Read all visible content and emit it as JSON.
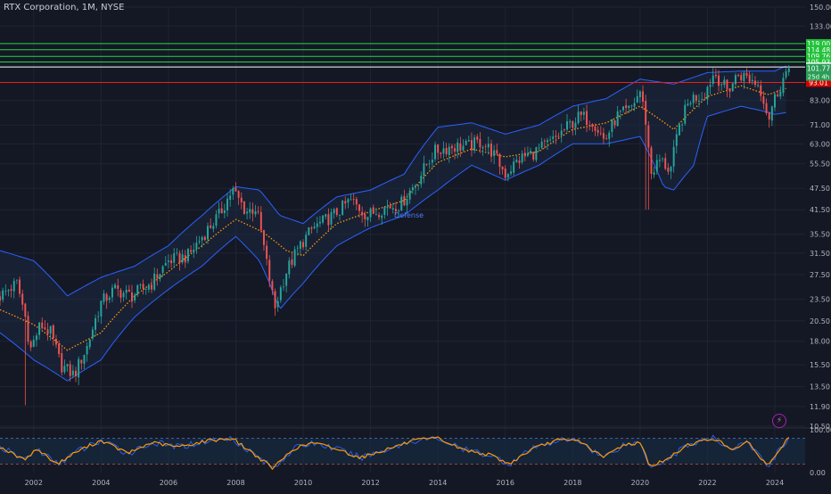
{
  "title": "RTX Corporation, 1M, NYSE",
  "colors": {
    "background": "#141824",
    "grid": "#1f2433",
    "bull": "#26a69a",
    "bear": "#ef5350",
    "band": "#2962ff",
    "band_fill": "#1c2a4a",
    "ma": "#ff9800",
    "resistance": "#26d34a",
    "current": "#ffffff",
    "support": "#ef1b1b",
    "osc": "#ff9800",
    "osc_b": "#2962ff",
    "osc_fill": "#16304a",
    "axis_text": "#b2b5be"
  },
  "annotation": "Defense",
  "alert_icon": "lightning-icon",
  "chart_data": {
    "type": "candlestick",
    "title": "RTX Corporation, 1M, NYSE",
    "log_scale": true,
    "ylim": [
      10.5,
      150
    ],
    "x_range": [
      2001.0,
      2024.9
    ],
    "x_ticks": [
      "2002",
      "2004",
      "2006",
      "2008",
      "2010",
      "2012",
      "2014",
      "2016",
      "2018",
      "2020",
      "2022",
      "2024"
    ],
    "y_ticks": [
      "150.00",
      "133.00",
      "119.00",
      "105.93",
      "93.01",
      "83.00",
      "71.00",
      "63.00",
      "55.50",
      "47.50",
      "41.50",
      "35.50",
      "31.50",
      "27.50",
      "23.50",
      "20.50",
      "18.00",
      "15.50",
      "13.50",
      "11.90",
      "10.50"
    ],
    "price_levels": [
      {
        "label": "119.00",
        "value": 119.0,
        "kind": "resistance"
      },
      {
        "label": "114.48",
        "value": 114.48,
        "kind": "resistance"
      },
      {
        "label": "109.76",
        "value": 109.76,
        "kind": "resistance"
      },
      {
        "label": "105.93",
        "value": 105.93,
        "kind": "resistance"
      },
      {
        "label": "102.59",
        "value": 102.59,
        "kind": "current"
      },
      {
        "label": "93.01",
        "value": 93.01,
        "kind": "support"
      }
    ],
    "last_price": {
      "label": "101.77",
      "sublabel": "25d 4h",
      "value": 101.77
    },
    "close_anchors": [
      [
        2001.0,
        24
      ],
      [
        2001.5,
        26
      ],
      [
        2001.75,
        21
      ],
      [
        2001.9,
        17
      ],
      [
        2002.2,
        20
      ],
      [
        2002.5,
        19
      ],
      [
        2002.8,
        15.5
      ],
      [
        2003.2,
        14.5
      ],
      [
        2003.6,
        17.5
      ],
      [
        2004.0,
        23
      ],
      [
        2004.4,
        25
      ],
      [
        2004.9,
        24
      ],
      [
        2005.5,
        26
      ],
      [
        2006.0,
        30
      ],
      [
        2006.6,
        31
      ],
      [
        2007.0,
        35
      ],
      [
        2007.5,
        40
      ],
      [
        2007.9,
        47
      ],
      [
        2008.3,
        41
      ],
      [
        2008.6,
        42
      ],
      [
        2008.9,
        30
      ],
      [
        2009.15,
        22
      ],
      [
        2009.5,
        28
      ],
      [
        2009.9,
        33
      ],
      [
        2010.3,
        37
      ],
      [
        2010.9,
        40
      ],
      [
        2011.4,
        44
      ],
      [
        2011.9,
        40
      ],
      [
        2012.4,
        42
      ],
      [
        2012.9,
        43
      ],
      [
        2013.4,
        50
      ],
      [
        2013.9,
        60
      ],
      [
        2014.4,
        62
      ],
      [
        2014.9,
        62
      ],
      [
        2015.3,
        64
      ],
      [
        2015.6,
        60
      ],
      [
        2016.0,
        52
      ],
      [
        2016.4,
        57
      ],
      [
        2016.9,
        60
      ],
      [
        2017.4,
        64
      ],
      [
        2017.9,
        71
      ],
      [
        2018.2,
        75
      ],
      [
        2018.6,
        73
      ],
      [
        2018.95,
        64
      ],
      [
        2019.3,
        75
      ],
      [
        2019.7,
        78
      ],
      [
        2020.0,
        88
      ],
      [
        2020.2,
        70
      ],
      [
        2020.3,
        52
      ],
      [
        2020.6,
        57
      ],
      [
        2020.9,
        53
      ],
      [
        2021.2,
        72
      ],
      [
        2021.5,
        84
      ],
      [
        2021.9,
        86
      ],
      [
        2022.2,
        99
      ],
      [
        2022.6,
        88
      ],
      [
        2022.9,
        98
      ],
      [
        2023.2,
        96
      ],
      [
        2023.5,
        92
      ],
      [
        2023.7,
        83
      ],
      [
        2023.8,
        73
      ],
      [
        2023.95,
        82
      ],
      [
        2024.2,
        93
      ],
      [
        2024.4,
        101.77
      ]
    ],
    "band_upper_anchors": [
      [
        2001.0,
        32
      ],
      [
        2002.0,
        30
      ],
      [
        2003.0,
        24
      ],
      [
        2004.0,
        27
      ],
      [
        2005.0,
        29
      ],
      [
        2006.0,
        33
      ],
      [
        2007.0,
        40
      ],
      [
        2008.0,
        48
      ],
      [
        2008.7,
        47
      ],
      [
        2009.3,
        40
      ],
      [
        2010.0,
        38
      ],
      [
        2011.0,
        45
      ],
      [
        2012.0,
        47
      ],
      [
        2013.0,
        52
      ],
      [
        2014.0,
        70
      ],
      [
        2015.0,
        72
      ],
      [
        2016.0,
        67
      ],
      [
        2017.0,
        71
      ],
      [
        2018.0,
        80
      ],
      [
        2019.0,
        84
      ],
      [
        2020.0,
        95
      ],
      [
        2021.0,
        92
      ],
      [
        2022.0,
        99
      ],
      [
        2023.0,
        100
      ],
      [
        2024.0,
        100
      ],
      [
        2024.4,
        104
      ]
    ],
    "band_lower_anchors": [
      [
        2001.0,
        19
      ],
      [
        2002.0,
        16
      ],
      [
        2003.0,
        14
      ],
      [
        2004.0,
        16
      ],
      [
        2005.0,
        21
      ],
      [
        2006.0,
        25
      ],
      [
        2007.0,
        29
      ],
      [
        2008.0,
        35
      ],
      [
        2008.7,
        30
      ],
      [
        2009.3,
        22
      ],
      [
        2010.0,
        26
      ],
      [
        2011.0,
        33
      ],
      [
        2012.0,
        37
      ],
      [
        2013.0,
        40
      ],
      [
        2014.0,
        47
      ],
      [
        2015.0,
        55
      ],
      [
        2016.0,
        50
      ],
      [
        2017.0,
        55
      ],
      [
        2018.0,
        63
      ],
      [
        2019.0,
        63
      ],
      [
        2020.0,
        66
      ],
      [
        2020.7,
        48
      ],
      [
        2021.0,
        47
      ],
      [
        2021.6,
        55
      ],
      [
        2022.0,
        75
      ],
      [
        2023.0,
        80
      ],
      [
        2023.8,
        77
      ],
      [
        2024.0,
        76
      ],
      [
        2024.4,
        77
      ]
    ],
    "ma_anchors": [
      [
        2001.0,
        22
      ],
      [
        2002.0,
        20
      ],
      [
        2003.0,
        17
      ],
      [
        2004.0,
        19
      ],
      [
        2005.0,
        24
      ],
      [
        2006.0,
        28
      ],
      [
        2007.0,
        33
      ],
      [
        2008.0,
        39
      ],
      [
        2008.8,
        36
      ],
      [
        2009.5,
        32
      ],
      [
        2010.0,
        31
      ],
      [
        2011.0,
        38
      ],
      [
        2012.0,
        41
      ],
      [
        2013.0,
        44
      ],
      [
        2014.0,
        56
      ],
      [
        2015.0,
        61
      ],
      [
        2016.0,
        58
      ],
      [
        2017.0,
        60
      ],
      [
        2018.0,
        69
      ],
      [
        2019.0,
        72
      ],
      [
        2020.0,
        80
      ],
      [
        2021.0,
        69
      ],
      [
        2022.0,
        85
      ],
      [
        2023.0,
        91
      ],
      [
        2023.8,
        86
      ],
      [
        2024.4,
        90
      ]
    ],
    "oscillator": {
      "ylim": [
        0,
        100
      ],
      "y_ticks": [
        "100.00",
        "0.00"
      ],
      "upper_line": 80,
      "lower_line": 20,
      "anchors": [
        [
          2001.0,
          60
        ],
        [
          2001.7,
          30
        ],
        [
          2002.1,
          55
        ],
        [
          2002.7,
          20
        ],
        [
          2003.3,
          50
        ],
        [
          2004.0,
          75
        ],
        [
          2004.8,
          45
        ],
        [
          2005.5,
          70
        ],
        [
          2006.3,
          60
        ],
        [
          2007.2,
          75
        ],
        [
          2007.9,
          80
        ],
        [
          2008.6,
          40
        ],
        [
          2009.1,
          10
        ],
        [
          2009.7,
          55
        ],
        [
          2010.3,
          70
        ],
        [
          2011.0,
          55
        ],
        [
          2011.7,
          35
        ],
        [
          2012.5,
          55
        ],
        [
          2013.3,
          75
        ],
        [
          2014.0,
          80
        ],
        [
          2014.7,
          55
        ],
        [
          2015.6,
          40
        ],
        [
          2016.1,
          20
        ],
        [
          2016.8,
          55
        ],
        [
          2017.5,
          75
        ],
        [
          2018.2,
          75
        ],
        [
          2018.9,
          35
        ],
        [
          2019.5,
          65
        ],
        [
          2020.0,
          70
        ],
        [
          2020.3,
          15
        ],
        [
          2020.8,
          30
        ],
        [
          2021.4,
          65
        ],
        [
          2022.2,
          80
        ],
        [
          2022.7,
          55
        ],
        [
          2023.2,
          70
        ],
        [
          2023.8,
          15
        ],
        [
          2024.1,
          50
        ],
        [
          2024.4,
          80
        ]
      ]
    }
  }
}
